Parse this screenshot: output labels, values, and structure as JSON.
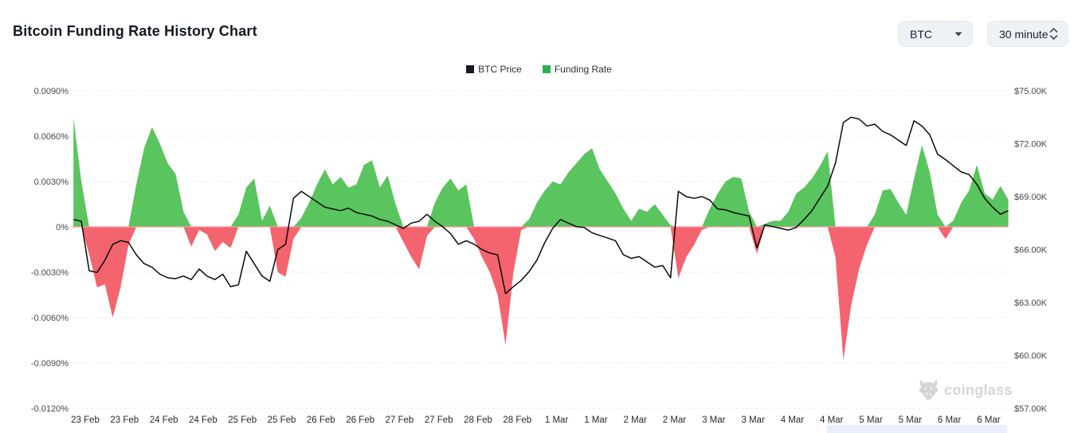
{
  "header": {
    "title": "Bitcoin Funding Rate History Chart"
  },
  "controls": {
    "symbol_select": {
      "value": "BTC",
      "icon": "caret-down-icon"
    },
    "interval_select": {
      "value": "30 minute",
      "icon": "up-down-chevrons-icon"
    }
  },
  "legend": [
    {
      "label": "BTC Price",
      "color": "#15181c"
    },
    {
      "label": "Funding Rate",
      "color": "#2eae52"
    }
  ],
  "watermark": {
    "text": "coinglass",
    "icon": "bull-icon"
  },
  "chart_data": {
    "type": "area+line",
    "title": "Bitcoin Funding Rate History Chart",
    "grid": "dashed horizontal",
    "zero_line_color": "#f19da1",
    "x_axis": {
      "unit": "days since 23 Feb 00:00, 30-minute funding interval",
      "tick_interval_days": 0.5,
      "tick_labels": [
        "23 Feb",
        "23 Feb",
        "24 Feb",
        "24 Feb",
        "25 Feb",
        "25 Feb",
        "26 Feb",
        "26 Feb",
        "27 Feb",
        "27 Feb",
        "28 Feb",
        "28 Feb",
        "1 Mar",
        "1 Mar",
        "2 Mar",
        "2 Mar",
        "3 Mar",
        "3 Mar",
        "4 Mar",
        "4 Mar",
        "5 Mar",
        "5 Mar",
        "6 Mar",
        "6 Mar"
      ]
    },
    "left_axis": {
      "label": "Funding Rate",
      "ylim": [
        -0.012,
        0.009
      ],
      "tick_values": [
        0.009,
        0.006,
        0.003,
        0,
        -0.003,
        -0.006,
        -0.009,
        -0.012
      ],
      "tick_labels": [
        "0.0090%",
        "0.0060%",
        "0.0030%",
        "0%",
        "-0.0030%",
        "-0.0060%",
        "-0.0090%",
        "-0.0120%"
      ]
    },
    "right_axis": {
      "label": "BTC Price",
      "ylim": [
        57,
        75
      ],
      "tick_values": [
        75,
        72,
        69,
        66,
        63,
        60,
        57
      ],
      "tick_labels": [
        "$75.00K",
        "$72.00K",
        "$69.00K",
        "$66.00K",
        "$63.00K",
        "$60.00K",
        "$57.00K"
      ]
    },
    "series": [
      {
        "name": "Funding Rate",
        "type": "area",
        "axis": "left",
        "unit": "percent",
        "color_pos": "#5ac45e",
        "color_neg": "#f4646e",
        "x_start": -0.15,
        "x_step": 0.1,
        "values": [
          0.0072,
          0.003,
          -0.0018,
          -0.004,
          -0.0038,
          -0.006,
          -0.004,
          -0.0012,
          0.0028,
          0.0052,
          0.0066,
          0.0055,
          0.0042,
          0.0035,
          0.001,
          -0.0013,
          -0.0002,
          -0.0005,
          -0.0016,
          -0.001,
          -0.0014,
          0.0008,
          0.0026,
          0.0032,
          0.0004,
          0.0014,
          -0.003,
          -0.0033,
          -0.0008,
          0.0006,
          0.0016,
          0.0028,
          0.0038,
          0.0028,
          0.0033,
          0.0026,
          0.0028,
          0.0041,
          0.0044,
          0.0026,
          0.0034,
          0.0015,
          -0.001,
          -0.002,
          -0.0028,
          -0.0006,
          0.0016,
          0.0026,
          0.0032,
          0.0024,
          0.0028,
          -0.0008,
          -0.002,
          -0.003,
          -0.0045,
          -0.0078,
          -0.003,
          -0.0002,
          0.0005,
          0.0016,
          0.0024,
          0.003,
          0.0028,
          0.0036,
          0.0042,
          0.0048,
          0.0052,
          0.0038,
          0.003,
          0.0022,
          0.0012,
          0.0004,
          0.0012,
          0.001,
          0.0015,
          0.0008,
          0.0001,
          -0.0034,
          -0.002,
          -0.0012,
          -0.0002,
          0.0012,
          0.0022,
          0.003,
          0.0033,
          0.0032,
          0.001,
          -0.0018,
          0.0002,
          0.0004,
          0.0004,
          0.001,
          0.0022,
          0.0026,
          0.0032,
          0.004,
          0.005,
          -0.002,
          -0.0088,
          -0.0052,
          -0.0028,
          -0.0012,
          0.0008,
          0.0024,
          0.0025,
          0.0016,
          0.0008,
          0.0032,
          0.0054,
          0.0036,
          0.0008,
          -0.0008,
          0.0004,
          0.0016,
          0.0024,
          0.0041,
          0.0022,
          0.0018,
          0.0027,
          0.0018
        ]
      },
      {
        "name": "BTC Price",
        "type": "line",
        "axis": "right",
        "unit": "K_USD",
        "color": "#0a0a0a",
        "x_start": -0.15,
        "x_step": 0.1,
        "values": [
          67.7,
          67.6,
          64.8,
          64.7,
          65.4,
          66.3,
          66.5,
          66.4,
          65.7,
          65.2,
          65.0,
          64.6,
          64.4,
          64.35,
          64.5,
          64.3,
          64.9,
          64.5,
          64.3,
          64.6,
          63.9,
          64.0,
          65.9,
          65.2,
          64.5,
          64.2,
          66.0,
          66.3,
          68.9,
          69.3,
          69.0,
          68.7,
          68.4,
          68.3,
          68.2,
          68.35,
          68.1,
          68.0,
          67.9,
          67.7,
          67.6,
          67.4,
          67.2,
          67.5,
          67.6,
          68.0,
          67.6,
          67.3,
          66.9,
          66.3,
          66.5,
          66.3,
          66.0,
          65.8,
          65.7,
          63.5,
          63.9,
          64.25,
          64.75,
          65.4,
          66.4,
          67.2,
          67.7,
          67.5,
          67.3,
          67.25,
          66.95,
          66.8,
          66.65,
          66.5,
          65.7,
          65.5,
          65.6,
          65.3,
          65.0,
          65.1,
          64.4,
          69.3,
          69.0,
          68.9,
          69.0,
          68.8,
          68.3,
          68.25,
          68.1,
          68.0,
          67.9,
          66.1,
          67.4,
          67.3,
          67.2,
          67.1,
          67.25,
          67.7,
          68.2,
          68.9,
          69.6,
          70.9,
          73.2,
          73.5,
          73.4,
          73.0,
          73.1,
          72.7,
          72.5,
          72.2,
          71.9,
          73.3,
          73.0,
          72.5,
          71.4,
          71.1,
          70.75,
          70.4,
          70.25,
          69.7,
          68.9,
          68.4,
          68.0,
          68.2
        ]
      }
    ]
  }
}
